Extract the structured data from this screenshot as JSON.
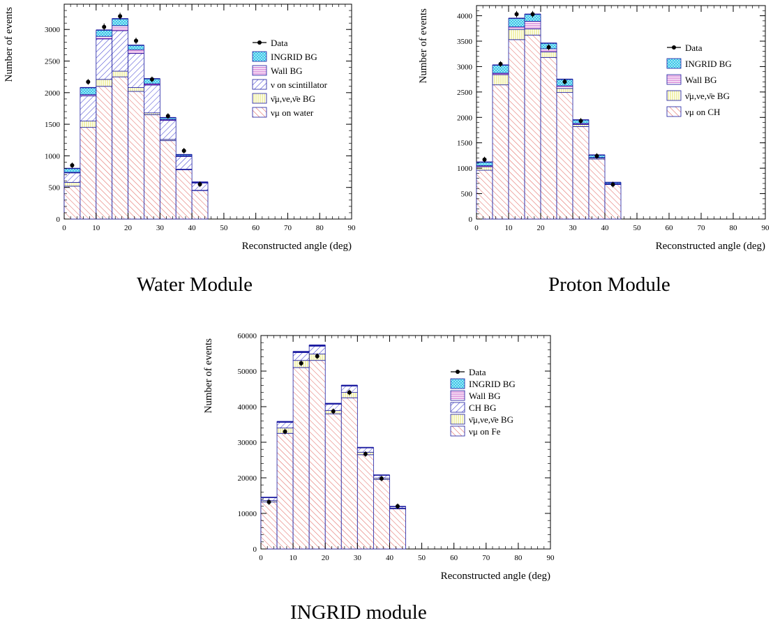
{
  "colors": {
    "signal": "#e0605a",
    "bar_bg": "#e8e87a",
    "scint": "#3a3ad0",
    "wall": "#c040c0",
    "ingrid": "#3ec6e8",
    "outline": "#1a1aa0",
    "data": "#000000"
  },
  "captions": [
    "Water Module",
    "Proton Module",
    "INGRID module"
  ],
  "chart_data": [
    {
      "type": "bar",
      "stacked_histogram": true,
      "title": "",
      "xlabel": "Reconstructed angle (deg)",
      "ylabel": "Number of events",
      "xlim": [
        0,
        90
      ],
      "ylim": [
        0,
        3400
      ],
      "xticks": [
        "0",
        "10",
        "20",
        "30",
        "40",
        "50",
        "60",
        "70",
        "80",
        "90"
      ],
      "yticks": [
        "0",
        "500",
        "1000",
        "1500",
        "2000",
        "2500",
        "3000"
      ],
      "bin_edges": [
        0,
        5,
        10,
        15,
        20,
        25,
        30,
        35,
        40,
        45
      ],
      "legend": [
        {
          "label": "Data",
          "style": "marker"
        },
        {
          "label": "INGRID BG",
          "style": "ingrid"
        },
        {
          "label": "Wall BG",
          "style": "wall"
        },
        {
          "label": "ν on scintillator",
          "style": "scint"
        },
        {
          "label": "ν̄μ,νe,ν̄e BG",
          "style": "bar"
        },
        {
          "label": "νμ on water",
          "style": "signal"
        }
      ],
      "series": [
        {
          "name": "νμ on water",
          "style": "signal",
          "values": [
            520,
            1450,
            2100,
            2250,
            2020,
            1650,
            1240,
            780,
            450
          ]
        },
        {
          "name": "ν̄μ,νe,ν̄e BG",
          "style": "bar",
          "values": [
            60,
            100,
            110,
            90,
            60,
            30,
            20,
            10,
            5
          ]
        },
        {
          "name": "ν on scintillator",
          "style": "scint",
          "values": [
            150,
            400,
            640,
            640,
            540,
            440,
            300,
            200,
            115
          ]
        },
        {
          "name": "Wall BG",
          "style": "wall",
          "values": [
            10,
            20,
            40,
            80,
            60,
            20,
            15,
            10,
            5
          ]
        },
        {
          "name": "INGRID BG",
          "style": "ingrid",
          "values": [
            60,
            110,
            100,
            110,
            70,
            80,
            30,
            20,
            10
          ]
        }
      ],
      "data_points": [
        {
          "x": 2.5,
          "y": 850,
          "err": 30
        },
        {
          "x": 7.5,
          "y": 2170,
          "err": 45
        },
        {
          "x": 12.5,
          "y": 3040,
          "err": 55
        },
        {
          "x": 17.5,
          "y": 3210,
          "err": 55
        },
        {
          "x": 22.5,
          "y": 2820,
          "err": 50
        },
        {
          "x": 27.5,
          "y": 2210,
          "err": 45
        },
        {
          "x": 32.5,
          "y": 1630,
          "err": 40
        },
        {
          "x": 37.5,
          "y": 1080,
          "err": 32
        },
        {
          "x": 42.5,
          "y": 550,
          "err": 24
        }
      ]
    },
    {
      "type": "bar",
      "stacked_histogram": true,
      "title": "",
      "xlabel": "Reconstructed angle (deg)",
      "ylabel": "Number of events",
      "xlim": [
        0,
        90
      ],
      "ylim": [
        0,
        4200
      ],
      "xticks": [
        "0",
        "10",
        "20",
        "30",
        "40",
        "50",
        "60",
        "70",
        "80",
        "90"
      ],
      "yticks": [
        "0",
        "500",
        "1000",
        "1500",
        "2000",
        "2500",
        "3000",
        "3500",
        "4000"
      ],
      "bin_edges": [
        0,
        5,
        10,
        15,
        20,
        25,
        30,
        35,
        40,
        45
      ],
      "legend": [
        {
          "label": "Data",
          "style": "marker"
        },
        {
          "label": "INGRID BG",
          "style": "ingrid"
        },
        {
          "label": "Wall BG",
          "style": "wall"
        },
        {
          "label": "ν̄μ,νe,ν̄e BG",
          "style": "bar"
        },
        {
          "label": "νμ on CH",
          "style": "signal"
        }
      ],
      "series": [
        {
          "name": "νμ on CH",
          "style": "signal",
          "values": [
            960,
            2640,
            3530,
            3620,
            3180,
            2490,
            1820,
            1180,
            680
          ]
        },
        {
          "name": "ν̄μ,νe,ν̄e BG",
          "style": "bar",
          "values": [
            70,
            200,
            200,
            120,
            110,
            80,
            40,
            20,
            10
          ]
        },
        {
          "name": "Wall BG",
          "style": "wall",
          "values": [
            20,
            30,
            50,
            150,
            60,
            50,
            20,
            10,
            5
          ]
        },
        {
          "name": "INGRID BG",
          "style": "ingrid",
          "values": [
            70,
            160,
            170,
            140,
            110,
            130,
            70,
            50,
            25
          ]
        }
      ],
      "data_points": [
        {
          "x": 2.5,
          "y": 1170,
          "err": 34
        },
        {
          "x": 7.5,
          "y": 3050,
          "err": 55
        },
        {
          "x": 12.5,
          "y": 4030,
          "err": 63
        },
        {
          "x": 17.5,
          "y": 4030,
          "err": 63
        },
        {
          "x": 22.5,
          "y": 3380,
          "err": 58
        },
        {
          "x": 27.5,
          "y": 2700,
          "err": 52
        },
        {
          "x": 32.5,
          "y": 1930,
          "err": 44
        },
        {
          "x": 37.5,
          "y": 1240,
          "err": 35
        },
        {
          "x": 42.5,
          "y": 680,
          "err": 26
        }
      ]
    },
    {
      "type": "bar",
      "stacked_histogram": true,
      "title": "",
      "xlabel": "Reconstructed angle (deg)",
      "ylabel": "Number of events",
      "xlim": [
        0,
        90
      ],
      "ylim": [
        0,
        60000
      ],
      "xticks": [
        "0",
        "10",
        "20",
        "30",
        "40",
        "50",
        "60",
        "70",
        "80",
        "90"
      ],
      "yticks": [
        "0",
        "10000",
        "20000",
        "30000",
        "40000",
        "50000",
        "60000"
      ],
      "bin_edges": [
        0,
        5,
        10,
        15,
        20,
        25,
        30,
        35,
        40,
        45
      ],
      "legend": [
        {
          "label": "Data",
          "style": "marker"
        },
        {
          "label": "INGRID BG",
          "style": "ingrid"
        },
        {
          "label": "Wall BG",
          "style": "wall"
        },
        {
          "label": "CH BG",
          "style": "scint"
        },
        {
          "label": "ν̄μ,νe,ν̄e BG",
          "style": "bar"
        },
        {
          "label": "νμ on Fe",
          "style": "signal"
        }
      ],
      "series": [
        {
          "name": "νμ on Fe",
          "style": "signal",
          "values": [
            13200,
            32500,
            51000,
            53000,
            38000,
            42500,
            26500,
            19500,
            11300
          ]
        },
        {
          "name": "ν̄μ,νe,ν̄e BG",
          "style": "bar",
          "values": [
            400,
            1500,
            2000,
            1800,
            900,
            1500,
            700,
            400,
            200
          ]
        },
        {
          "name": "CH BG",
          "style": "scint",
          "values": [
            800,
            1600,
            2200,
            2200,
            1800,
            1800,
            1200,
            800,
            400
          ]
        },
        {
          "name": "Wall BG",
          "style": "wall",
          "values": [
            50,
            100,
            150,
            150,
            100,
            100,
            60,
            40,
            20
          ]
        },
        {
          "name": "INGRID BG",
          "style": "ingrid",
          "values": [
            50,
            100,
            150,
            150,
            100,
            100,
            60,
            40,
            20
          ]
        }
      ],
      "data_points": [
        {
          "x": 2.5,
          "y": 13200,
          "err": 115
        },
        {
          "x": 7.5,
          "y": 33000,
          "err": 180
        },
        {
          "x": 12.5,
          "y": 52200,
          "err": 230
        },
        {
          "x": 17.5,
          "y": 54200,
          "err": 230
        },
        {
          "x": 22.5,
          "y": 38700,
          "err": 200
        },
        {
          "x": 27.5,
          "y": 44000,
          "err": 210
        },
        {
          "x": 32.5,
          "y": 26700,
          "err": 165
        },
        {
          "x": 37.5,
          "y": 19800,
          "err": 140
        },
        {
          "x": 42.5,
          "y": 12000,
          "err": 110
        }
      ]
    }
  ]
}
